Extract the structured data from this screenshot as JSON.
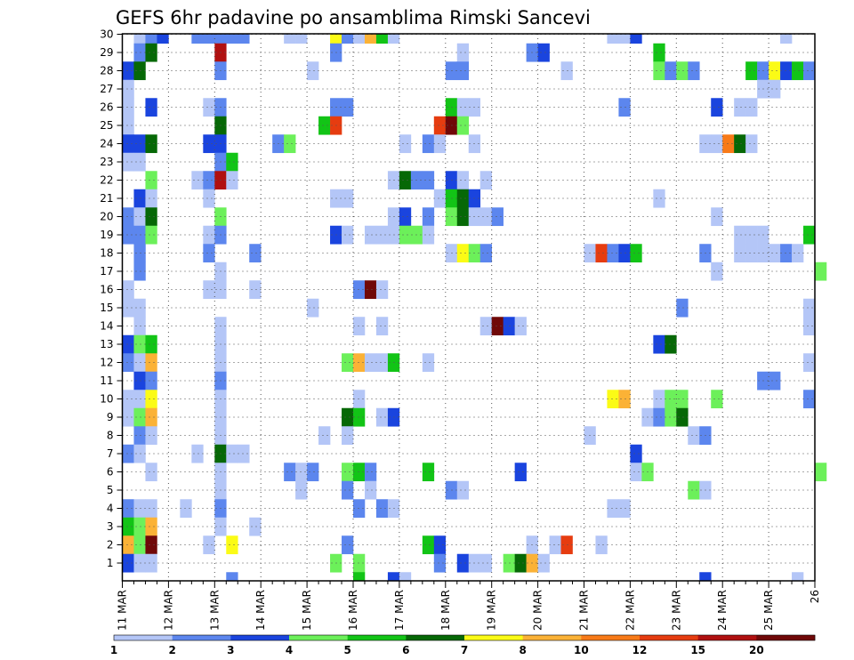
{
  "chart_data": {
    "type": "heatmap",
    "title": "GEFS 6hr padavine po ansamblima Rimski Sancevi",
    "xlabel": "",
    "ylabel": "",
    "x_tick_labels": [
      "11 MAR",
      "12 MAR",
      "13 MAR",
      "14 MAR",
      "15 MAR",
      "16 MAR",
      "17 MAR",
      "18 MAR",
      "19 MAR",
      "20 MAR",
      "21 MAR",
      "22 MAR",
      "23 MAR",
      "24 MAR",
      "25 MAR",
      "26"
    ],
    "x_range": [
      "11 MAR 00Z",
      "26 MAR 00Z"
    ],
    "x_step": "6hr",
    "y_range": [
      1,
      30
    ],
    "y_tick_labels": [
      1,
      2,
      3,
      4,
      5,
      6,
      7,
      8,
      9,
      10,
      11,
      12,
      13,
      14,
      15,
      16,
      17,
      18,
      19,
      20,
      21,
      22,
      23,
      24,
      25,
      26,
      27,
      28,
      29,
      30
    ],
    "grid": "dotted",
    "colorbar": {
      "levels": [
        1,
        2,
        3,
        4,
        5,
        6,
        7,
        8,
        10,
        12,
        15,
        20
      ],
      "tick_labels": [
        "1",
        "2",
        "3",
        "4",
        "5",
        "6",
        "7",
        "8",
        "10",
        "12",
        "15",
        "20"
      ],
      "colors": [
        "#b4c6f7",
        "#5c86ee",
        "#1a44de",
        "#6cf05a",
        "#12c416",
        "#066806",
        "#fbfb16",
        "#fbb236",
        "#f87a18",
        "#e63c10",
        "#b01010",
        "#700808"
      ]
    },
    "cells_format": "[ensemble_member, time_step_index_from_11MAR00Z, color_class_index]",
    "cells": [
      [
        30,
        1,
        1
      ],
      [
        30,
        2,
        2
      ],
      [
        30,
        3,
        3
      ],
      [
        30,
        6,
        2
      ],
      [
        30,
        7,
        2
      ],
      [
        30,
        8,
        2
      ],
      [
        30,
        9,
        2
      ],
      [
        30,
        10,
        2
      ],
      [
        30,
        14,
        1
      ],
      [
        30,
        15,
        1
      ],
      [
        30,
        18,
        7
      ],
      [
        30,
        19,
        2
      ],
      [
        30,
        20,
        1
      ],
      [
        30,
        21,
        8
      ],
      [
        30,
        22,
        5
      ],
      [
        30,
        23,
        1
      ],
      [
        30,
        42,
        1
      ],
      [
        30,
        43,
        1
      ],
      [
        30,
        44,
        3
      ],
      [
        30,
        57,
        1
      ],
      [
        29,
        1,
        2
      ],
      [
        29,
        2,
        6
      ],
      [
        29,
        8,
        11
      ],
      [
        29,
        18,
        2
      ],
      [
        29,
        29,
        1
      ],
      [
        29,
        35,
        2
      ],
      [
        29,
        36,
        3
      ],
      [
        29,
        46,
        5
      ],
      [
        28,
        0,
        3
      ],
      [
        28,
        1,
        6
      ],
      [
        28,
        8,
        2
      ],
      [
        28,
        16,
        1
      ],
      [
        28,
        28,
        2
      ],
      [
        28,
        29,
        2
      ],
      [
        28,
        38,
        1
      ],
      [
        28,
        46,
        4
      ],
      [
        28,
        47,
        2
      ],
      [
        28,
        48,
        4
      ],
      [
        28,
        49,
        2
      ],
      [
        28,
        54,
        5
      ],
      [
        28,
        55,
        2
      ],
      [
        28,
        56,
        7
      ],
      [
        28,
        57,
        3
      ],
      [
        28,
        58,
        5
      ],
      [
        28,
        59,
        2
      ],
      [
        27,
        0,
        1
      ],
      [
        27,
        55,
        1
      ],
      [
        27,
        56,
        1
      ],
      [
        26,
        0,
        1
      ],
      [
        26,
        2,
        3
      ],
      [
        26,
        7,
        1
      ],
      [
        26,
        8,
        2
      ],
      [
        26,
        18,
        2
      ],
      [
        26,
        19,
        2
      ],
      [
        26,
        28,
        5
      ],
      [
        26,
        29,
        1
      ],
      [
        26,
        30,
        1
      ],
      [
        26,
        43,
        2
      ],
      [
        26,
        51,
        3
      ],
      [
        26,
        53,
        1
      ],
      [
        26,
        54,
        1
      ],
      [
        25,
        0,
        1
      ],
      [
        25,
        8,
        6
      ],
      [
        25,
        17,
        5
      ],
      [
        25,
        18,
        10
      ],
      [
        25,
        27,
        10
      ],
      [
        25,
        28,
        12
      ],
      [
        25,
        29,
        4
      ],
      [
        24,
        0,
        3
      ],
      [
        24,
        1,
        3
      ],
      [
        24,
        2,
        6
      ],
      [
        24,
        7,
        3
      ],
      [
        24,
        8,
        3
      ],
      [
        24,
        13,
        2
      ],
      [
        24,
        14,
        4
      ],
      [
        24,
        24,
        1
      ],
      [
        24,
        26,
        2
      ],
      [
        24,
        27,
        1
      ],
      [
        24,
        30,
        1
      ],
      [
        24,
        50,
        1
      ],
      [
        24,
        51,
        1
      ],
      [
        24,
        52,
        9
      ],
      [
        24,
        53,
        6
      ],
      [
        24,
        54,
        1
      ],
      [
        23,
        0,
        1
      ],
      [
        23,
        1,
        1
      ],
      [
        23,
        8,
        2
      ],
      [
        23,
        9,
        5
      ],
      [
        22,
        2,
        4
      ],
      [
        22,
        6,
        1
      ],
      [
        22,
        7,
        2
      ],
      [
        22,
        8,
        11
      ],
      [
        22,
        9,
        1
      ],
      [
        22,
        23,
        1
      ],
      [
        22,
        24,
        6
      ],
      [
        22,
        25,
        2
      ],
      [
        22,
        26,
        2
      ],
      [
        22,
        28,
        3
      ],
      [
        22,
        29,
        1
      ],
      [
        22,
        31,
        1
      ],
      [
        21,
        1,
        3
      ],
      [
        21,
        2,
        1
      ],
      [
        21,
        7,
        1
      ],
      [
        21,
        18,
        1
      ],
      [
        21,
        19,
        1
      ],
      [
        21,
        27,
        1
      ],
      [
        21,
        28,
        5
      ],
      [
        21,
        29,
        6
      ],
      [
        21,
        30,
        3
      ],
      [
        21,
        46,
        1
      ],
      [
        20,
        0,
        2
      ],
      [
        20,
        1,
        1
      ],
      [
        20,
        2,
        6
      ],
      [
        20,
        8,
        4
      ],
      [
        20,
        23,
        1
      ],
      [
        20,
        24,
        3
      ],
      [
        20,
        26,
        2
      ],
      [
        20,
        28,
        4
      ],
      [
        20,
        29,
        6
      ],
      [
        20,
        30,
        1
      ],
      [
        20,
        31,
        1
      ],
      [
        20,
        32,
        2
      ],
      [
        20,
        51,
        1
      ],
      [
        19,
        0,
        2
      ],
      [
        19,
        1,
        2
      ],
      [
        19,
        2,
        4
      ],
      [
        19,
        7,
        1
      ],
      [
        19,
        8,
        2
      ],
      [
        19,
        18,
        3
      ],
      [
        19,
        19,
        1
      ],
      [
        19,
        21,
        1
      ],
      [
        19,
        22,
        1
      ],
      [
        19,
        23,
        1
      ],
      [
        19,
        24,
        4
      ],
      [
        19,
        25,
        4
      ],
      [
        19,
        26,
        1
      ],
      [
        19,
        53,
        1
      ],
      [
        19,
        54,
        1
      ],
      [
        19,
        55,
        1
      ],
      [
        19,
        59,
        5
      ],
      [
        18,
        1,
        2
      ],
      [
        18,
        7,
        2
      ],
      [
        18,
        11,
        2
      ],
      [
        18,
        28,
        1
      ],
      [
        18,
        29,
        7
      ],
      [
        18,
        30,
        4
      ],
      [
        18,
        31,
        2
      ],
      [
        18,
        40,
        1
      ],
      [
        18,
        41,
        10
      ],
      [
        18,
        42,
        2
      ],
      [
        18,
        43,
        3
      ],
      [
        18,
        44,
        5
      ],
      [
        18,
        50,
        2
      ],
      [
        18,
        53,
        1
      ],
      [
        18,
        54,
        1
      ],
      [
        18,
        55,
        1
      ],
      [
        18,
        56,
        1
      ],
      [
        18,
        57,
        2
      ],
      [
        18,
        58,
        1
      ],
      [
        17,
        1,
        2
      ],
      [
        17,
        8,
        1
      ],
      [
        17,
        51,
        1
      ],
      [
        17,
        60,
        4
      ],
      [
        16,
        0,
        1
      ],
      [
        16,
        7,
        1
      ],
      [
        16,
        8,
        1
      ],
      [
        16,
        11,
        1
      ],
      [
        16,
        20,
        2
      ],
      [
        16,
        21,
        12
      ],
      [
        16,
        22,
        1
      ],
      [
        15,
        0,
        1
      ],
      [
        15,
        1,
        1
      ],
      [
        15,
        16,
        1
      ],
      [
        15,
        48,
        2
      ],
      [
        15,
        59,
        1
      ],
      [
        14,
        1,
        1
      ],
      [
        14,
        8,
        1
      ],
      [
        14,
        20,
        1
      ],
      [
        14,
        22,
        1
      ],
      [
        14,
        31,
        1
      ],
      [
        14,
        32,
        12
      ],
      [
        14,
        33,
        3
      ],
      [
        14,
        34,
        1
      ],
      [
        14,
        59,
        1
      ],
      [
        13,
        0,
        3
      ],
      [
        13,
        1,
        4
      ],
      [
        13,
        2,
        5
      ],
      [
        13,
        8,
        1
      ],
      [
        13,
        46,
        3
      ],
      [
        13,
        47,
        6
      ],
      [
        12,
        0,
        2
      ],
      [
        12,
        1,
        1
      ],
      [
        12,
        2,
        8
      ],
      [
        12,
        8,
        1
      ],
      [
        12,
        19,
        4
      ],
      [
        12,
        20,
        8
      ],
      [
        12,
        21,
        1
      ],
      [
        12,
        22,
        1
      ],
      [
        12,
        23,
        5
      ],
      [
        12,
        26,
        1
      ],
      [
        12,
        59,
        1
      ],
      [
        11,
        1,
        3
      ],
      [
        11,
        2,
        2
      ],
      [
        11,
        8,
        2
      ],
      [
        11,
        55,
        2
      ],
      [
        11,
        56,
        2
      ],
      [
        10,
        0,
        1
      ],
      [
        10,
        1,
        1
      ],
      [
        10,
        2,
        7
      ],
      [
        10,
        8,
        1
      ],
      [
        10,
        20,
        1
      ],
      [
        10,
        42,
        7
      ],
      [
        10,
        43,
        8
      ],
      [
        10,
        46,
        1
      ],
      [
        10,
        47,
        4
      ],
      [
        10,
        48,
        4
      ],
      [
        10,
        51,
        4
      ],
      [
        10,
        59,
        2
      ],
      [
        9,
        0,
        1
      ],
      [
        9,
        1,
        4
      ],
      [
        9,
        2,
        8
      ],
      [
        9,
        8,
        1
      ],
      [
        9,
        19,
        6
      ],
      [
        9,
        20,
        5
      ],
      [
        9,
        22,
        1
      ],
      [
        9,
        23,
        3
      ],
      [
        9,
        45,
        1
      ],
      [
        9,
        46,
        2
      ],
      [
        9,
        47,
        4
      ],
      [
        9,
        48,
        6
      ],
      [
        8,
        1,
        2
      ],
      [
        8,
        2,
        1
      ],
      [
        8,
        8,
        1
      ],
      [
        8,
        17,
        1
      ],
      [
        8,
        19,
        1
      ],
      [
        8,
        40,
        1
      ],
      [
        8,
        49,
        1
      ],
      [
        8,
        50,
        2
      ],
      [
        7,
        0,
        2
      ],
      [
        7,
        1,
        1
      ],
      [
        7,
        6,
        1
      ],
      [
        7,
        8,
        6
      ],
      [
        7,
        9,
        1
      ],
      [
        7,
        10,
        1
      ],
      [
        7,
        44,
        3
      ],
      [
        6,
        2,
        1
      ],
      [
        6,
        8,
        1
      ],
      [
        6,
        14,
        2
      ],
      [
        6,
        15,
        1
      ],
      [
        6,
        16,
        2
      ],
      [
        6,
        19,
        4
      ],
      [
        6,
        20,
        5
      ],
      [
        6,
        21,
        2
      ],
      [
        6,
        26,
        5
      ],
      [
        6,
        34,
        3
      ],
      [
        6,
        44,
        1
      ],
      [
        6,
        45,
        4
      ],
      [
        6,
        60,
        4
      ],
      [
        5,
        8,
        1
      ],
      [
        5,
        15,
        1
      ],
      [
        5,
        19,
        2
      ],
      [
        5,
        21,
        1
      ],
      [
        5,
        28,
        2
      ],
      [
        5,
        29,
        1
      ],
      [
        5,
        49,
        4
      ],
      [
        5,
        50,
        1
      ],
      [
        4,
        0,
        2
      ],
      [
        4,
        1,
        1
      ],
      [
        4,
        2,
        1
      ],
      [
        4,
        5,
        1
      ],
      [
        4,
        8,
        2
      ],
      [
        4,
        20,
        2
      ],
      [
        4,
        22,
        2
      ],
      [
        4,
        23,
        1
      ],
      [
        4,
        42,
        1
      ],
      [
        4,
        43,
        1
      ],
      [
        3,
        0,
        5
      ],
      [
        3,
        1,
        4
      ],
      [
        3,
        2,
        8
      ],
      [
        3,
        8,
        1
      ],
      [
        3,
        11,
        1
      ],
      [
        2,
        0,
        8
      ],
      [
        2,
        1,
        4
      ],
      [
        2,
        2,
        12
      ],
      [
        2,
        7,
        1
      ],
      [
        2,
        9,
        7
      ],
      [
        2,
        19,
        2
      ],
      [
        2,
        26,
        5
      ],
      [
        2,
        27,
        3
      ],
      [
        2,
        35,
        1
      ],
      [
        2,
        37,
        1
      ],
      [
        2,
        38,
        10
      ],
      [
        2,
        41,
        1
      ],
      [
        1,
        0,
        3
      ],
      [
        1,
        1,
        1
      ],
      [
        1,
        2,
        1
      ],
      [
        1,
        18,
        4
      ],
      [
        1,
        20,
        4
      ],
      [
        1,
        27,
        2
      ],
      [
        1,
        29,
        3
      ],
      [
        1,
        30,
        1
      ],
      [
        1,
        31,
        1
      ],
      [
        1,
        33,
        4
      ],
      [
        1,
        34,
        6
      ],
      [
        1,
        35,
        8
      ],
      [
        1,
        36,
        1
      ],
      [
        0,
        9,
        2
      ],
      [
        0,
        20,
        5
      ],
      [
        0,
        23,
        3
      ],
      [
        0,
        24,
        1
      ],
      [
        0,
        50,
        3
      ],
      [
        0,
        58,
        1
      ]
    ]
  }
}
